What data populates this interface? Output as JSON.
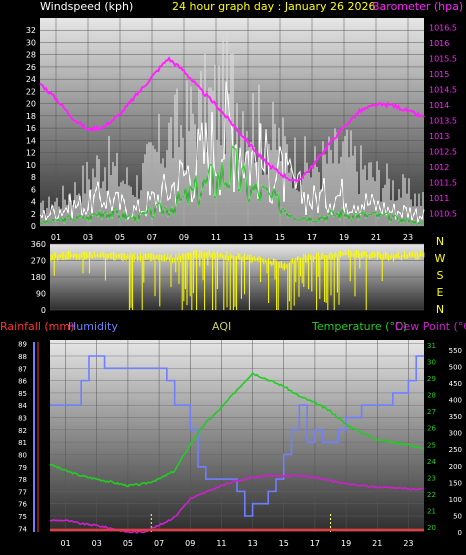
{
  "colors": {
    "wind": "#ffffff",
    "gust_fill": "#dcdcdc",
    "wind_avg": "#33cc33",
    "barometer": "#ff22ff",
    "direction": "#ffff00",
    "rainfall": "#ff3333",
    "humidity": "#6f7fff",
    "temperature": "#22cc22",
    "dewpoint": "#cc22cc",
    "aqi": "#cccc66",
    "axis_text": "#ffffff",
    "panel_bg_top": "#e6e6e6",
    "panel_bg_bottom": "#3a3a3a"
  },
  "chart_data": [
    {
      "type": "line",
      "title": "24 hour graph day : January 26 2026",
      "left_label": "Windspeed (kph)",
      "right_label": "Barometer (hpa)",
      "x_ticks": [
        "01",
        "03",
        "05",
        "07",
        "09",
        "11",
        "13",
        "15",
        "17",
        "19",
        "21",
        "23"
      ],
      "x_range": [
        0,
        24
      ],
      "y_left_ticks": [
        0,
        2,
        4,
        6,
        8,
        10,
        12,
        14,
        16,
        18,
        20,
        22,
        24,
        26,
        28,
        30,
        32
      ],
      "y_left_range": [
        0,
        34
      ],
      "y_right_ticks": [
        1010.5,
        1011,
        1011.5,
        1012,
        1012.5,
        1013,
        1013.5,
        1014,
        1014.5,
        1015,
        1015.5,
        1016,
        1016.5
      ],
      "y_right_range": [
        1010.1,
        1016.8
      ],
      "series": [
        {
          "name": "Windspeed (kph)",
          "x": [
            0,
            1,
            2,
            3,
            4,
            5,
            6,
            7,
            8,
            9,
            10,
            11,
            12,
            13,
            14,
            15,
            16,
            17,
            18,
            19,
            20,
            21,
            22,
            23,
            24
          ],
          "values": [
            2,
            3,
            4,
            4,
            6,
            4,
            3,
            5,
            7,
            10,
            13,
            16,
            19,
            14,
            12,
            10,
            7,
            5,
            6,
            6,
            5,
            4,
            3,
            3,
            2
          ]
        },
        {
          "name": "Gust",
          "x": [
            0,
            1,
            2,
            3,
            4,
            5,
            6,
            7,
            8,
            9,
            10,
            11,
            12,
            13,
            14,
            15,
            16,
            17,
            18,
            19,
            20,
            21,
            22,
            23,
            24
          ],
          "values": [
            4,
            6,
            8,
            12,
            16,
            12,
            10,
            16,
            22,
            24,
            28,
            30,
            33,
            28,
            22,
            20,
            16,
            14,
            16,
            18,
            14,
            12,
            10,
            8,
            6
          ]
        },
        {
          "name": "Average wind",
          "x": [
            0,
            1,
            2,
            3,
            4,
            5,
            6,
            7,
            8,
            9,
            10,
            11,
            12,
            13,
            14,
            15,
            16,
            17,
            18,
            19,
            20,
            21,
            22,
            23,
            24
          ],
          "values": [
            0.5,
            1,
            1.5,
            1.5,
            3,
            2,
            1.5,
            2.5,
            3.5,
            5,
            7,
            9,
            11,
            7,
            6,
            4,
            2,
            1.5,
            2,
            2.5,
            2,
            2,
            1.5,
            1,
            0.5
          ]
        },
        {
          "name": "Barometer (hpa)",
          "x": [
            0,
            1,
            2,
            3,
            4,
            5,
            6,
            7,
            8,
            9,
            10,
            11,
            12,
            13,
            14,
            15,
            16,
            17,
            18,
            19,
            20,
            21,
            22,
            23,
            24
          ],
          "values": [
            1014.7,
            1014.2,
            1013.6,
            1013.2,
            1013.3,
            1013.7,
            1014.3,
            1014.9,
            1015.5,
            1015.1,
            1014.5,
            1014.0,
            1013.4,
            1012.8,
            1012.2,
            1011.8,
            1011.5,
            1012.0,
            1012.7,
            1013.3,
            1013.8,
            1014.0,
            1014.0,
            1013.8,
            1013.6
          ]
        }
      ]
    },
    {
      "type": "scatter",
      "title": "",
      "ylabel_ticks": [
        0,
        90,
        180,
        270,
        360
      ],
      "y_range": [
        0,
        360
      ],
      "compass_labels": [
        "N",
        "W",
        "S",
        "E",
        "N"
      ],
      "x_range": [
        0,
        24
      ],
      "series": [
        {
          "name": "Wind direction",
          "x": [
            0,
            1,
            2,
            3,
            4,
            5,
            6,
            7,
            8,
            9,
            10,
            11,
            12,
            13,
            14,
            15,
            16,
            17,
            18,
            19,
            20,
            21,
            22,
            23,
            24
          ],
          "values": [
            290,
            300,
            300,
            300,
            295,
            290,
            290,
            290,
            280,
            300,
            310,
            300,
            290,
            280,
            270,
            240,
            280,
            290,
            300,
            310,
            300,
            300,
            290,
            300,
            300
          ]
        }
      ]
    },
    {
      "type": "line",
      "labels": {
        "rainfall": "Rainfall (mm)",
        "humidity": "Humidity",
        "aqi": "AQI",
        "temperature": "Temperature (°C)",
        "dewpoint": "Dew Point (°C)"
      },
      "x_ticks": [
        "01",
        "03",
        "05",
        "07",
        "09",
        "11",
        "13",
        "15",
        "17",
        "19",
        "21",
        "23"
      ],
      "x_range": [
        0,
        24
      ],
      "y_humidity_ticks": [
        74,
        75,
        76,
        77,
        78,
        79,
        80,
        81,
        82,
        83,
        84,
        85,
        86,
        87,
        88,
        89
      ],
      "y_humidity_range": [
        73.7,
        89.3
      ],
      "y_temp_ticks": [
        20,
        21,
        22,
        23,
        24,
        25,
        26,
        27,
        28,
        29,
        30,
        31
      ],
      "y_temp_range": [
        19.7,
        31.3
      ],
      "y_aqi_ticks": [
        0,
        50,
        100,
        150,
        200,
        250,
        300,
        350,
        400,
        450,
        500,
        550
      ],
      "y_aqi_range": [
        0,
        580
      ],
      "series": [
        {
          "name": "Humidity",
          "x": [
            0,
            1,
            2,
            2.5,
            3,
            3.5,
            4,
            5,
            6,
            7,
            7.5,
            8,
            9,
            9.5,
            10,
            11,
            12,
            12.5,
            13,
            13.5,
            14,
            14.5,
            15,
            15.5,
            16,
            16.5,
            17,
            17.5,
            18,
            18.5,
            19,
            20,
            21,
            22,
            23,
            23.5,
            24
          ],
          "values": [
            84,
            84,
            86,
            88,
            88,
            87,
            87,
            87,
            87,
            87,
            86,
            84,
            82,
            79,
            78,
            78,
            77,
            75,
            76,
            76,
            77,
            78,
            80,
            82,
            84,
            81,
            82,
            81,
            81,
            82,
            83,
            84,
            84,
            85,
            86,
            88,
            88
          ]
        },
        {
          "name": "Temperature (°C)",
          "x": [
            0,
            1,
            2,
            3,
            4,
            5,
            6,
            7,
            8,
            9,
            10,
            11,
            12,
            13,
            14,
            15,
            16,
            17,
            18,
            19,
            20,
            21,
            22,
            23,
            24
          ],
          "values": [
            23.8,
            23.4,
            23.1,
            22.9,
            22.7,
            22.5,
            22.6,
            22.9,
            23.4,
            25.0,
            26.3,
            27.2,
            28.3,
            29.3,
            28.9,
            28.5,
            27.9,
            27.5,
            27.0,
            26.2,
            25.7,
            25.3,
            25.1,
            25.0,
            24.7
          ]
        },
        {
          "name": "Dew Point (°C)",
          "x": [
            0,
            1,
            2,
            3,
            4,
            5,
            6,
            7,
            8,
            9,
            10,
            11,
            12,
            13,
            14,
            15,
            16,
            17,
            18,
            19,
            20,
            21,
            22,
            23,
            24
          ],
          "values": [
            20.4,
            20.4,
            20.2,
            20.1,
            19.9,
            19.7,
            19.7,
            20.1,
            20.6,
            21.7,
            22.1,
            22.5,
            22.8,
            23.0,
            23.1,
            23.1,
            23.1,
            23.0,
            22.8,
            22.6,
            22.5,
            22.4,
            22.4,
            22.3,
            22.3
          ]
        },
        {
          "name": "Rainfall (mm)",
          "x": [
            0,
            24
          ],
          "values": [
            0,
            0
          ]
        }
      ]
    }
  ]
}
